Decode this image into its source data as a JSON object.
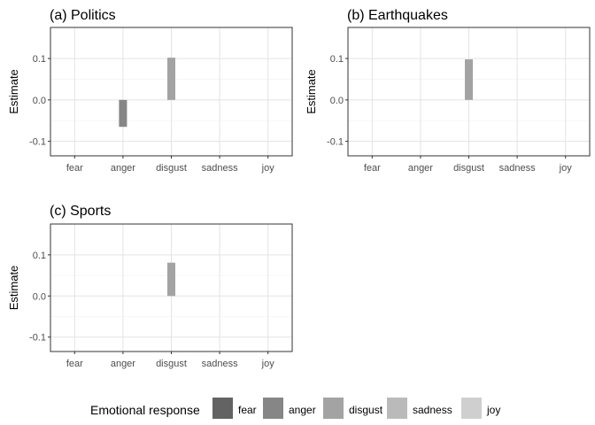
{
  "chart_data": [
    {
      "type": "bar",
      "title": "(a) Politics",
      "xlabel": "",
      "ylabel": "Estimate",
      "categories": [
        "fear",
        "anger",
        "disgust",
        "sadness",
        "joy"
      ],
      "values": [
        0,
        -0.065,
        0.102,
        0,
        0
      ],
      "ylim": [
        -0.135,
        0.175
      ],
      "yticks": [
        -0.1,
        0.0,
        0.1
      ],
      "ytick_labels": [
        "-0.1",
        "0.0",
        "0.1"
      ],
      "grid": true
    },
    {
      "type": "bar",
      "title": "(b) Earthquakes",
      "xlabel": "",
      "ylabel": "Estimate",
      "categories": [
        "fear",
        "anger",
        "disgust",
        "sadness",
        "joy"
      ],
      "values": [
        0,
        0,
        0.098,
        0,
        0
      ],
      "ylim": [
        -0.135,
        0.175
      ],
      "yticks": [
        -0.1,
        0.0,
        0.1
      ],
      "ytick_labels": [
        "-0.1",
        "0.0",
        "0.1"
      ],
      "grid": true
    },
    {
      "type": "bar",
      "title": "(c) Sports",
      "xlabel": "",
      "ylabel": "Estimate",
      "categories": [
        "fear",
        "anger",
        "disgust",
        "sadness",
        "joy"
      ],
      "values": [
        0,
        0,
        0.081,
        0,
        0
      ],
      "ylim": [
        -0.135,
        0.175
      ],
      "yticks": [
        -0.1,
        0.0,
        0.1
      ],
      "ytick_labels": [
        "-0.1",
        "0.0",
        "0.1"
      ],
      "grid": true
    }
  ],
  "legend": {
    "title": "Emotional response",
    "placement": "bottom",
    "items": [
      {
        "label": "fear",
        "color": "#636363"
      },
      {
        "label": "anger",
        "color": "#868686"
      },
      {
        "label": "disgust",
        "color": "#a3a3a3"
      },
      {
        "label": "sadness",
        "color": "#bababa"
      },
      {
        "label": "joy",
        "color": "#cfcfcf"
      }
    ]
  }
}
